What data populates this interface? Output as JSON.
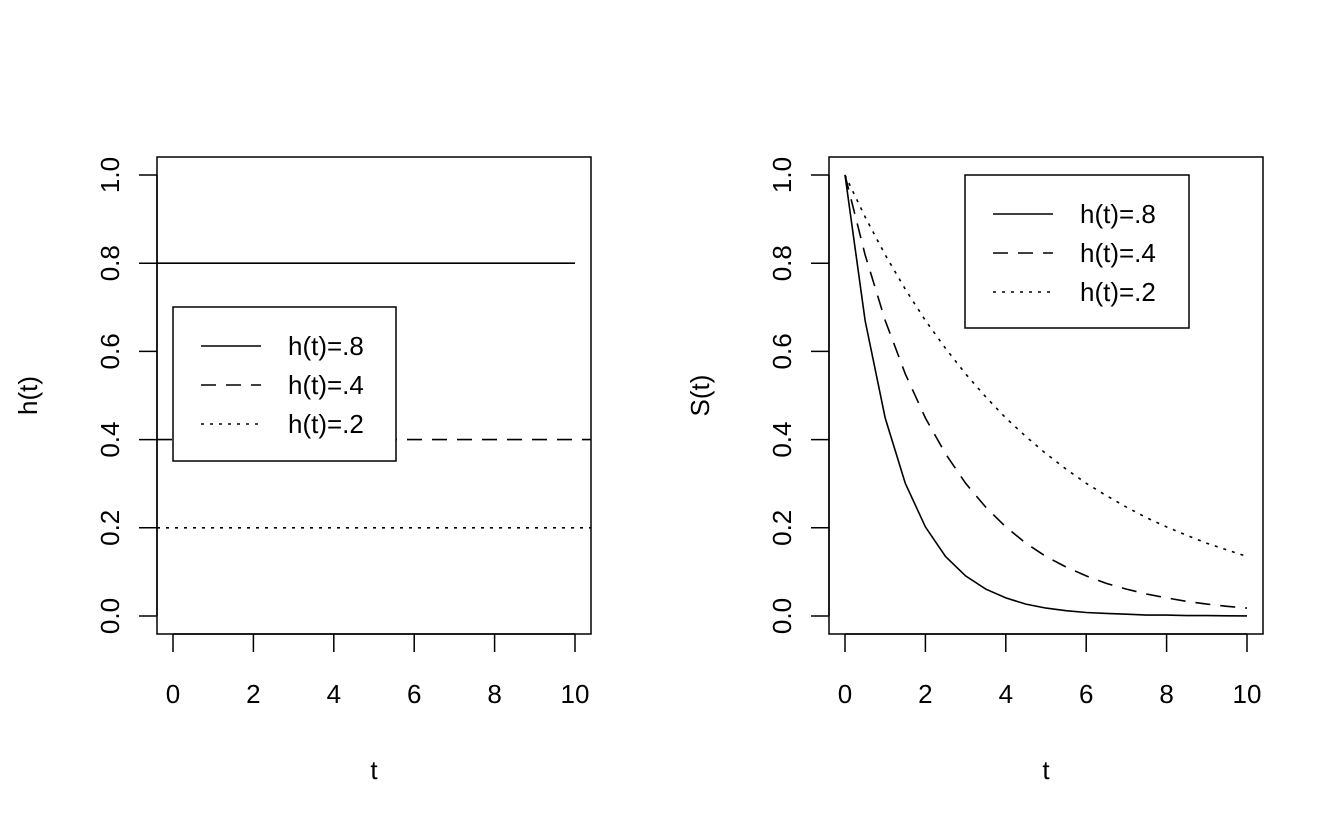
{
  "chart_data": [
    {
      "type": "line",
      "xlabel": "t",
      "ylabel": "h(t)",
      "xlim": [
        0,
        10
      ],
      "ylim": [
        0,
        1
      ],
      "xticks": [
        "0",
        "2",
        "4",
        "6",
        "8",
        "10"
      ],
      "yticks": [
        "0.0",
        "0.2",
        "0.4",
        "0.6",
        "0.8",
        "1.0"
      ],
      "grid": false,
      "legend_position": "center-left",
      "x": [
        0,
        10
      ],
      "series": [
        {
          "name": "h(t)=.8",
          "style": "solid",
          "values": [
            0.8,
            0.8
          ]
        },
        {
          "name": "h(t)=.4",
          "style": "dashed",
          "values": [
            0.4,
            0.4
          ]
        },
        {
          "name": "h(t)=.2",
          "style": "dotted",
          "values": [
            0.2,
            0.2
          ]
        }
      ]
    },
    {
      "type": "line",
      "xlabel": "t",
      "ylabel": "S(t)",
      "xlim": [
        0,
        10
      ],
      "ylim": [
        0,
        1
      ],
      "xticks": [
        "0",
        "2",
        "4",
        "6",
        "8",
        "10"
      ],
      "yticks": [
        "0.0",
        "0.2",
        "0.4",
        "0.6",
        "0.8",
        "1.0"
      ],
      "grid": false,
      "legend_position": "top-right",
      "x": [
        0,
        0.5,
        1,
        1.5,
        2,
        2.5,
        3,
        3.5,
        4,
        4.5,
        5,
        5.5,
        6,
        6.5,
        7,
        7.5,
        8,
        8.5,
        9,
        9.5,
        10
      ],
      "series": [
        {
          "name": "h(t)=.8",
          "style": "solid",
          "values": [
            1.0,
            0.67,
            0.449,
            0.301,
            0.202,
            0.135,
            0.091,
            0.061,
            0.041,
            0.027,
            0.018,
            0.012,
            0.008,
            0.006,
            0.004,
            0.002,
            0.002,
            0.001,
            0.001,
            0.0005,
            0.0003
          ]
        },
        {
          "name": "h(t)=.4",
          "style": "dashed",
          "values": [
            1.0,
            0.819,
            0.67,
            0.549,
            0.449,
            0.368,
            0.301,
            0.247,
            0.202,
            0.165,
            0.135,
            0.111,
            0.091,
            0.074,
            0.061,
            0.05,
            0.041,
            0.033,
            0.027,
            0.022,
            0.018
          ]
        },
        {
          "name": "h(t)=.2",
          "style": "dotted",
          "values": [
            1.0,
            0.905,
            0.819,
            0.741,
            0.67,
            0.607,
            0.549,
            0.497,
            0.449,
            0.407,
            0.368,
            0.333,
            0.301,
            0.273,
            0.247,
            0.223,
            0.202,
            0.183,
            0.165,
            0.15,
            0.135
          ]
        }
      ]
    }
  ]
}
